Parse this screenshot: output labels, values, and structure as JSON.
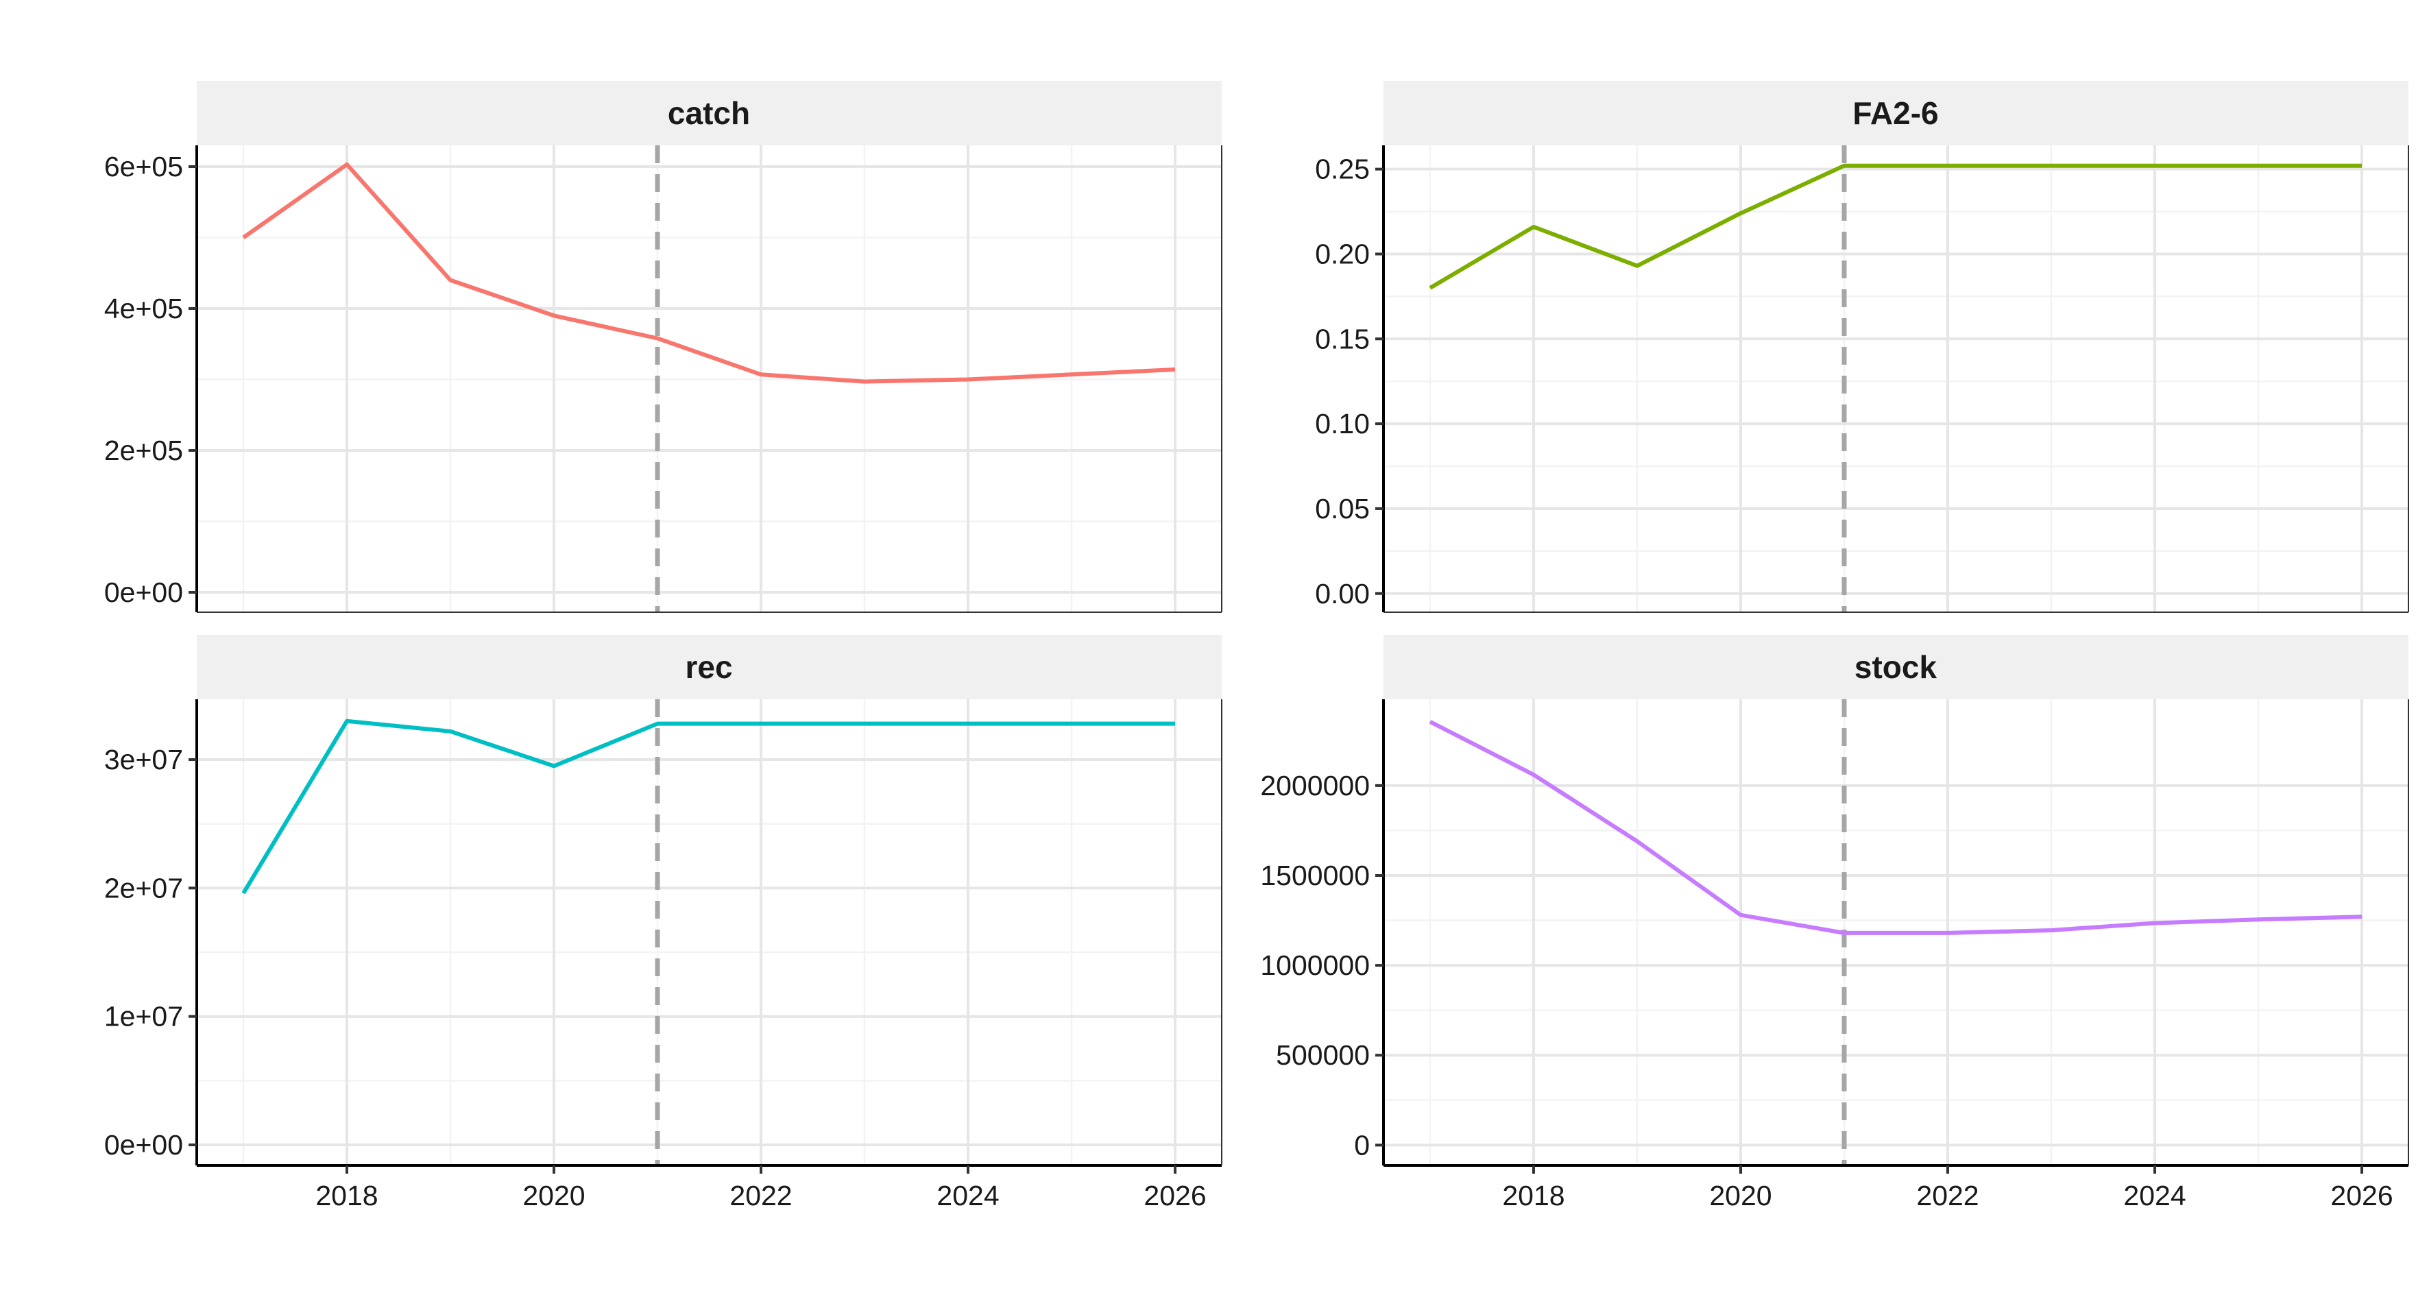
{
  "chart_data": {
    "type": "line",
    "layout": "facet-grid-2x2",
    "x_ticks": [
      2018,
      2020,
      2022,
      2024,
      2026
    ],
    "vline_x": 2021,
    "grid": true,
    "panels": [
      {
        "title": "catch",
        "color": "#F8766D",
        "x": [
          2017,
          2018,
          2019,
          2020,
          2021,
          2022,
          2023,
          2024,
          2025,
          2026
        ],
        "y": [
          500000,
          603000,
          440000,
          390000,
          358000,
          307000,
          297000,
          300000,
          307000,
          314000
        ],
        "ylim": [
          -28000,
          630000
        ],
        "y_ticks": [
          0,
          200000,
          400000,
          600000
        ],
        "y_tick_labels": [
          "0e+00",
          "2e+05",
          "4e+05",
          "6e+05"
        ]
      },
      {
        "title": "FA2-6",
        "color": "#7CAE00",
        "x": [
          2017,
          2018,
          2019,
          2020,
          2021,
          2022,
          2023,
          2024,
          2025,
          2026
        ],
        "y": [
          0.18,
          0.216,
          0.193,
          0.224,
          0.252,
          0.252,
          0.252,
          0.252,
          0.252,
          0.252
        ],
        "ylim": [
          -0.011,
          0.264
        ],
        "y_ticks": [
          0,
          0.05,
          0.1,
          0.15,
          0.2,
          0.25
        ],
        "y_tick_labels": [
          "0.00",
          "0.05",
          "0.10",
          "0.15",
          "0.20",
          "0.25"
        ]
      },
      {
        "title": "rec",
        "color": "#00BFC4",
        "x": [
          2017,
          2018,
          2019,
          2020,
          2021,
          2022,
          2023,
          2024,
          2025,
          2026
        ],
        "y": [
          19600000,
          33000000,
          32200000,
          29500000,
          32800000,
          32800000,
          32800000,
          32800000,
          32800000,
          32800000
        ],
        "ylim": [
          -1600000,
          34700000
        ],
        "y_ticks": [
          0,
          10000000,
          20000000,
          30000000
        ],
        "y_tick_labels": [
          "0e+00",
          "1e+07",
          "2e+07",
          "3e+07"
        ]
      },
      {
        "title": "stock",
        "color": "#C77CFF",
        "x": [
          2017,
          2018,
          2019,
          2020,
          2021,
          2022,
          2023,
          2024,
          2025,
          2026
        ],
        "y": [
          2355000,
          2060000,
          1690000,
          1280000,
          1180000,
          1180000,
          1195000,
          1235000,
          1255000,
          1270000
        ],
        "ylim": [
          -113000,
          2480000
        ],
        "y_ticks": [
          0,
          500000,
          1000000,
          1500000,
          2000000
        ],
        "y_tick_labels": [
          "0",
          "500000",
          "1000000",
          "1500000",
          "2000000"
        ]
      }
    ]
  }
}
